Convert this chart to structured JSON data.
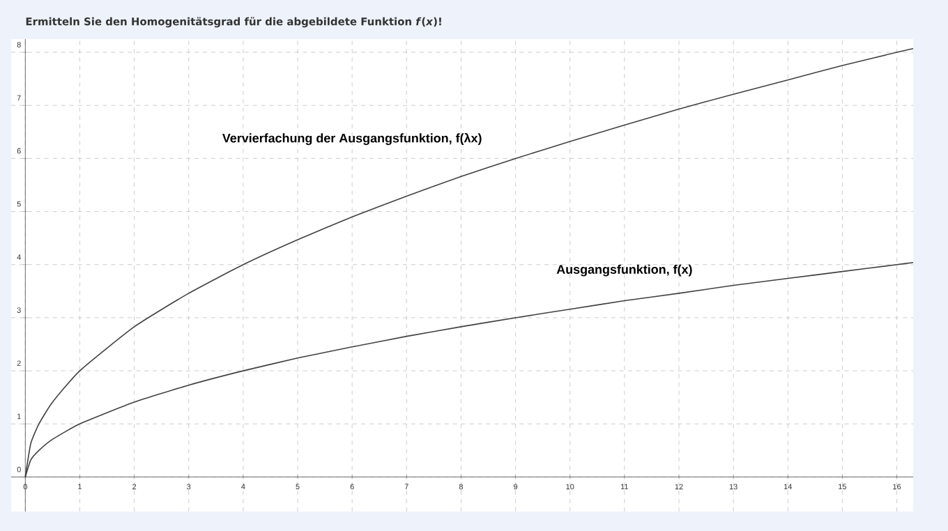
{
  "chart_data": {
    "type": "line",
    "title": "Ermitteln Sie den Homogenitätsgrad für die abgebildete Funktion *f*(*x*)!",
    "x": [
      0,
      0.1,
      0.25,
      0.5,
      1,
      2,
      3,
      4,
      5,
      6,
      7,
      8,
      9,
      10,
      11,
      12,
      13,
      14,
      15,
      16,
      16.3
    ],
    "series": [
      {
        "name": "Vervierfachung der Ausgangsfunktion, f(λx)",
        "color": "#404040",
        "values": [
          0,
          0.63,
          1,
          1.41,
          2,
          2.83,
          3.46,
          4,
          4.47,
          4.9,
          5.29,
          5.66,
          6,
          6.32,
          6.63,
          6.93,
          7.21,
          7.48,
          7.75,
          8,
          8.07
        ]
      },
      {
        "name": "Ausgangsfunktion, f(x)",
        "color": "#404040",
        "values": [
          0,
          0.32,
          0.5,
          0.71,
          1,
          1.41,
          1.73,
          2,
          2.24,
          2.45,
          2.65,
          2.83,
          3,
          3.16,
          3.32,
          3.46,
          3.61,
          3.74,
          3.87,
          4,
          4.04
        ]
      }
    ],
    "xlim": [
      -0.26,
      16.3
    ],
    "ylim": [
      -0.65,
      8.25
    ],
    "xticks": [
      0,
      1,
      2,
      3,
      4,
      5,
      6,
      7,
      8,
      9,
      10,
      11,
      12,
      13,
      14,
      15,
      16
    ],
    "yticks": [
      0,
      1,
      2,
      3,
      4,
      5,
      6,
      7,
      8
    ],
    "grid": true
  }
}
